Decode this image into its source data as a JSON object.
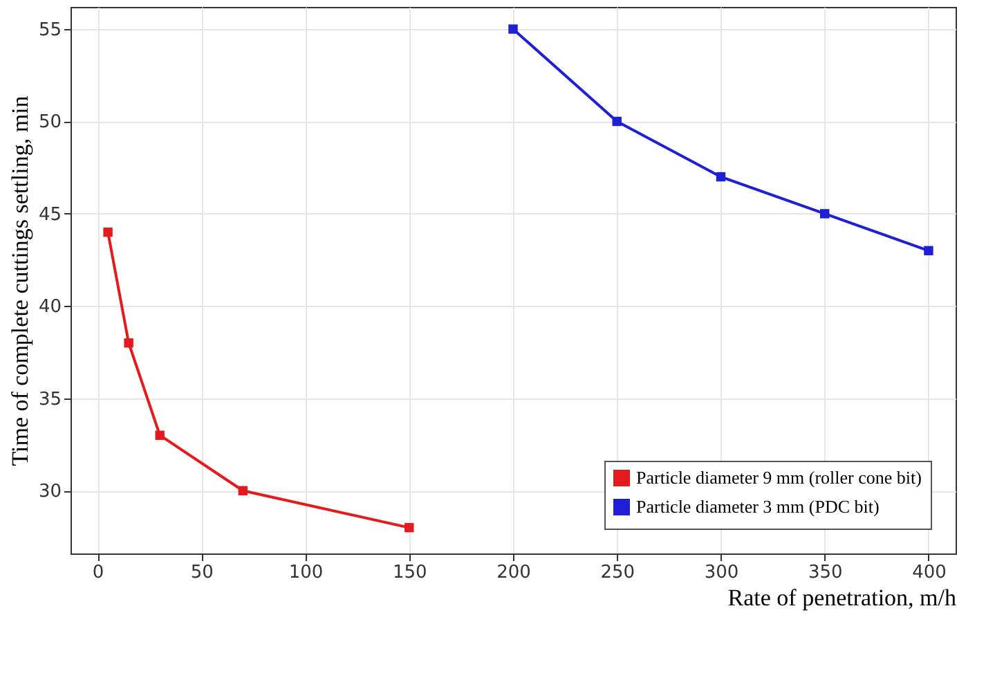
{
  "chart_data": {
    "type": "line",
    "xlabel": "Rate of penetration, m/h",
    "ylabel": "Time of complete cuttings settling, min",
    "xlim": [
      -13,
      413
    ],
    "xticks": [
      0,
      50,
      100,
      150,
      200,
      250,
      300,
      350,
      400
    ],
    "ylim": [
      26.6,
      56.2
    ],
    "yticks": [
      30,
      35,
      40,
      45,
      50,
      55
    ],
    "grid": true,
    "legend": "bottom right",
    "marker": "square",
    "line_style": "solid",
    "series": [
      {
        "name": "Particle diameter 9 mm (roller cone bit)",
        "color": "#e41a1c",
        "x": [
          5,
          15,
          30,
          70,
          150
        ],
        "values": [
          44,
          38,
          33,
          30,
          28
        ]
      },
      {
        "name": "Particle diameter 3 mm (PDC bit)",
        "color": "#1f1fd6",
        "x": [
          200,
          250,
          300,
          350,
          400
        ],
        "values": [
          55,
          50,
          47,
          45,
          43
        ]
      }
    ]
  }
}
